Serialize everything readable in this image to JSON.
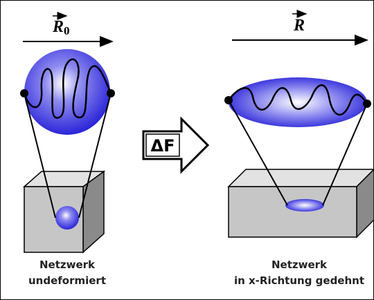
{
  "left": {
    "label": "R",
    "subscript": "0",
    "caption": [
      "Netzwerk",
      "undeformiert"
    ]
  },
  "arrow": {
    "label": "ΔF"
  },
  "right": {
    "label": "R",
    "caption": [
      "Netzwerk",
      "in x-Richtung gedehnt"
    ]
  }
}
